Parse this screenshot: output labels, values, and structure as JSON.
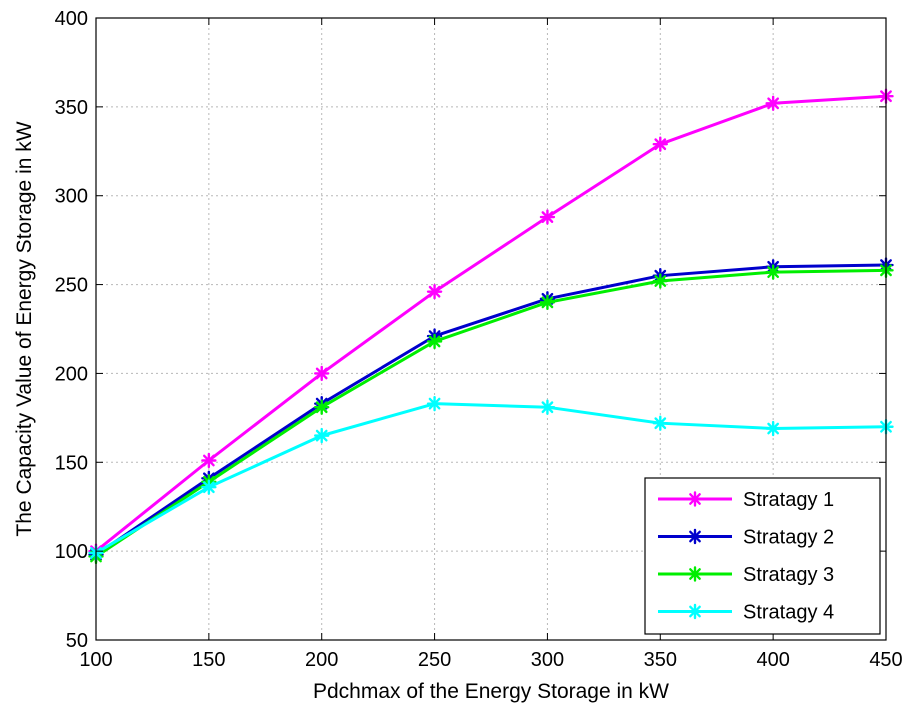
{
  "chart_data": {
    "type": "line",
    "xlabel": "Pdchmax of the Energy Storage in kW",
    "ylabel": "The Capacity Value of Energy Storage in kW",
    "xlim": [
      100,
      450
    ],
    "ylim": [
      50,
      400
    ],
    "xticks": [
      100,
      150,
      200,
      250,
      300,
      350,
      400,
      450
    ],
    "yticks": [
      50,
      100,
      150,
      200,
      250,
      300,
      350,
      400
    ],
    "grid": true,
    "legend_position": "bottom-right",
    "x": [
      100,
      150,
      200,
      250,
      300,
      350,
      400,
      450
    ],
    "series": [
      {
        "name": "Stratagy 1",
        "color": "#ff00ff",
        "marker": "asterisk",
        "values": [
          100,
          151,
          200,
          246,
          288,
          329,
          352,
          356
        ]
      },
      {
        "name": "Stratagy 2",
        "color": "#0000cc",
        "marker": "asterisk",
        "values": [
          98,
          141,
          183,
          221,
          242,
          255,
          260,
          261
        ]
      },
      {
        "name": "Stratagy 3",
        "color": "#00ee00",
        "marker": "asterisk",
        "values": [
          97,
          139,
          181,
          218,
          240,
          252,
          257,
          258
        ]
      },
      {
        "name": "Stratagy 4",
        "color": "#00ffff",
        "marker": "asterisk",
        "values": [
          99,
          136,
          165,
          183,
          181,
          172,
          169,
          170
        ]
      }
    ]
  }
}
